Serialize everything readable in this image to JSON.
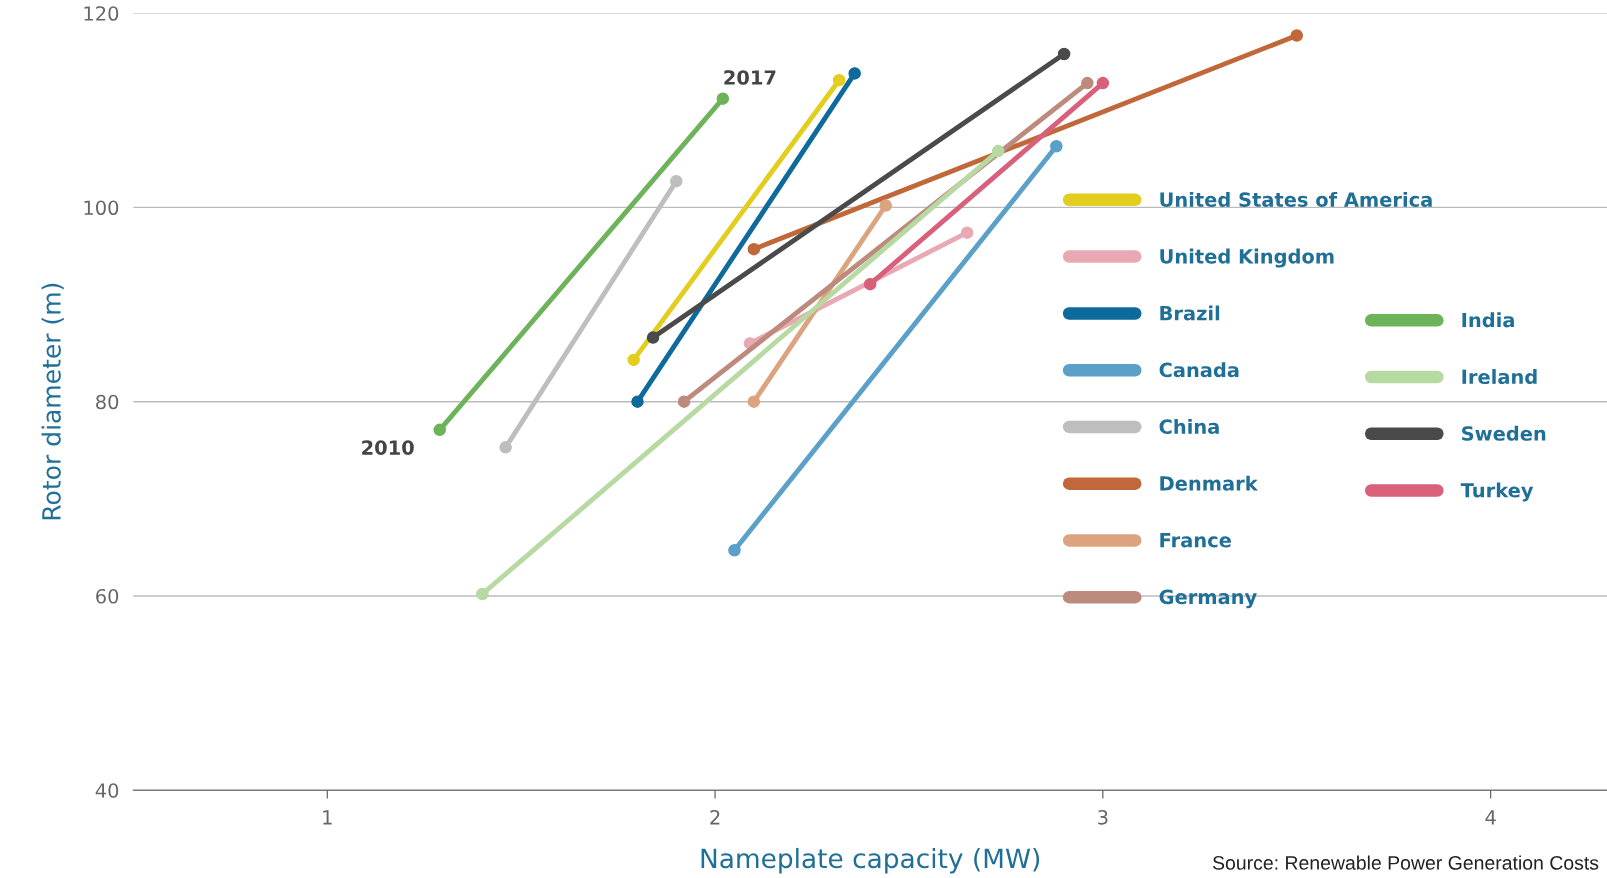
{
  "chart_data": {
    "type": "line",
    "xlabel": "Nameplate capacity (MW)",
    "ylabel": "Rotor diameter (m)",
    "xlim": [
      0.5,
      4.3
    ],
    "xticks": [
      1,
      2,
      3,
      4
    ],
    "ylim": [
      40,
      120
    ],
    "yticks": [
      40,
      60,
      80,
      100,
      120
    ],
    "grid": "y",
    "legend": "right",
    "marker": "circle",
    "line_style": "solid",
    "series": [
      {
        "name": "United States of America",
        "color": "#e3cd1f",
        "x": [
          1.79,
          2.32
        ],
        "values": [
          84.3,
          113.1
        ]
      },
      {
        "name": "United Kingdom",
        "color": "#e9a9b4",
        "x": [
          2.09,
          2.65
        ],
        "values": [
          86.0,
          97.4
        ]
      },
      {
        "name": "Brazil",
        "color": "#0e6a9b",
        "x": [
          1.8,
          2.36
        ],
        "values": [
          80,
          113.8
        ]
      },
      {
        "name": "Canada",
        "color": "#5aa0c8",
        "x": [
          2.05,
          2.88
        ],
        "values": [
          64.7,
          106.3
        ]
      },
      {
        "name": "China",
        "color": "#bebebe",
        "x": [
          1.46,
          1.9
        ],
        "values": [
          75.3,
          102.7
        ]
      },
      {
        "name": "Denmark",
        "color": "#c0683a",
        "x": [
          2.1,
          3.5
        ],
        "values": [
          95.7,
          117.7
        ]
      },
      {
        "name": "France",
        "color": "#dba47e",
        "x": [
          2.1,
          2.44
        ],
        "values": [
          80,
          100.2
        ]
      },
      {
        "name": "Germany",
        "color": "#bc8b7e",
        "x": [
          1.92,
          2.96
        ],
        "values": [
          80,
          112.8
        ]
      },
      {
        "name": "India",
        "color": "#6db35a",
        "x": [
          1.29,
          2.02
        ],
        "values": [
          77.1,
          111.2
        ]
      },
      {
        "name": "Ireland",
        "color": "#b7d9a2",
        "x": [
          1.4,
          2.73
        ],
        "values": [
          60.2,
          105.8
        ]
      },
      {
        "name": "Sweden",
        "color": "#4a4a4a",
        "x": [
          1.84,
          2.9
        ],
        "values": [
          86.6,
          115.8
        ]
      },
      {
        "name": "Turkey",
        "color": "#d9607a",
        "x": [
          2.4,
          3.0
        ],
        "values": [
          92.1,
          112.8
        ]
      }
    ],
    "annotations": [
      {
        "text": "2010",
        "x": 1.29,
        "y": 77.1
      },
      {
        "text": "2017",
        "x": 2.02,
        "y": 111.2
      },
      "Source: Renewable Power Generation Costs"
    ]
  }
}
